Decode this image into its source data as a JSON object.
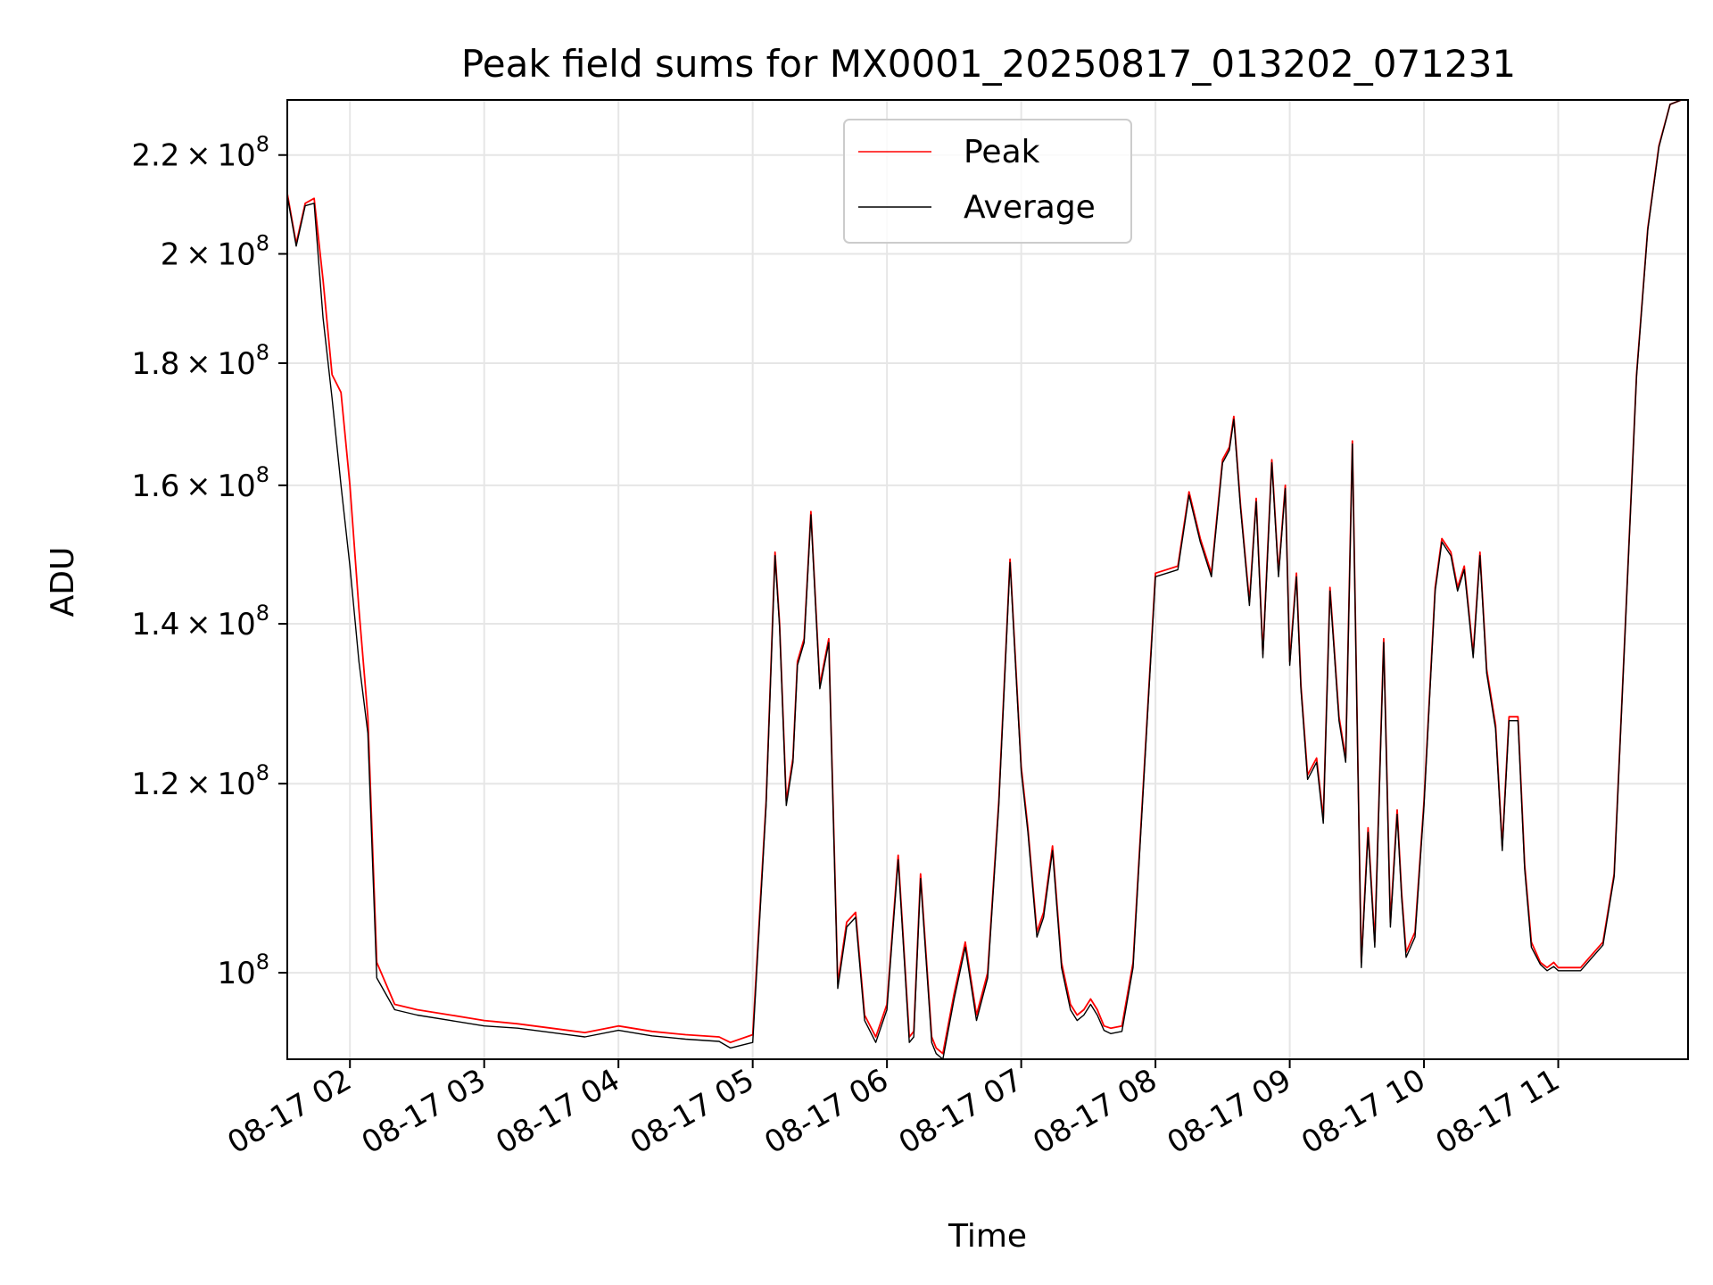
{
  "chart_data": {
    "type": "line",
    "title": "Peak field sums for MX0001_20250817_013202_071231",
    "xlabel": "Time",
    "ylabel": "ADU",
    "yscale": "log",
    "ylim": [
      92000000,
      232000000
    ],
    "xlim": [
      "08-17 01:32",
      "08-17 11:58"
    ],
    "grid": true,
    "legend_position": "upper-center",
    "x_ticks": [
      "08-17 02",
      "08-17 03",
      "08-17 04",
      "08-17 05",
      "08-17 06",
      "08-17 07",
      "08-17 08",
      "08-17 09",
      "08-17 10",
      "08-17 11"
    ],
    "y_ticks": [
      {
        "value": 100000000,
        "mant": "",
        "exp": "8",
        "label": "10^8"
      },
      {
        "value": 120000000,
        "mant": "1.2",
        "exp": "8",
        "label": "1.2 × 10^8"
      },
      {
        "value": 140000000,
        "mant": "1.4",
        "exp": "8",
        "label": "1.4 × 10^8"
      },
      {
        "value": 160000000,
        "mant": "1.6",
        "exp": "8",
        "label": "1.6 × 10^8"
      },
      {
        "value": 180000000,
        "mant": "1.8",
        "exp": "8",
        "label": "1.8 × 10^8"
      },
      {
        "value": 200000000,
        "mant": "2",
        "exp": "8",
        "label": "2 × 10^8"
      },
      {
        "value": 220000000,
        "mant": "2.2",
        "exp": "8",
        "label": "2.2 × 10^8"
      }
    ],
    "x": [
      "01:32",
      "01:36",
      "01:40",
      "01:44",
      "01:48",
      "01:52",
      "01:56",
      "02:00",
      "02:04",
      "02:08",
      "02:12",
      "02:20",
      "02:30",
      "02:45",
      "03:00",
      "03:15",
      "03:30",
      "03:45",
      "04:00",
      "04:15",
      "04:30",
      "04:45",
      "04:50",
      "05:00",
      "05:06",
      "05:10",
      "05:12",
      "05:15",
      "05:18",
      "05:20",
      "05:23",
      "05:26",
      "05:30",
      "05:34",
      "05:38",
      "05:42",
      "05:46",
      "05:50",
      "05:55",
      "06:00",
      "06:05",
      "06:10",
      "06:12",
      "06:15",
      "06:20",
      "06:22",
      "06:25",
      "06:30",
      "06:35",
      "06:40",
      "06:45",
      "06:50",
      "06:55",
      "07:00",
      "07:03",
      "07:07",
      "07:10",
      "07:14",
      "07:18",
      "07:22",
      "07:25",
      "07:28",
      "07:31",
      "07:34",
      "07:37",
      "07:40",
      "07:45",
      "07:50",
      "08:00",
      "08:10",
      "08:15",
      "08:20",
      "08:25",
      "08:30",
      "08:33",
      "08:35",
      "08:38",
      "08:42",
      "08:45",
      "08:48",
      "08:52",
      "08:55",
      "08:58",
      "09:00",
      "09:03",
      "09:05",
      "09:08",
      "09:12",
      "09:15",
      "09:18",
      "09:22",
      "09:25",
      "09:28",
      "09:32",
      "09:35",
      "09:38",
      "09:42",
      "09:45",
      "09:48",
      "09:50",
      "09:52",
      "09:56",
      "10:00",
      "10:05",
      "10:08",
      "10:12",
      "10:15",
      "10:18",
      "10:22",
      "10:25",
      "10:28",
      "10:32",
      "10:35",
      "10:38",
      "10:42",
      "10:45",
      "10:48",
      "10:52",
      "10:55",
      "10:58",
      "11:00",
      "11:10",
      "11:20",
      "11:25",
      "11:30",
      "11:35",
      "11:40",
      "11:45",
      "11:50",
      "11:55",
      "11:58"
    ],
    "series": [
      {
        "name": "Peak",
        "color": "#ff0000",
        "values": [
          212000000,
          202000000,
          210000000,
          211000000,
          195000000,
          178000000,
          175000000,
          160000000,
          142000000,
          128000000,
          101000000,
          97000000,
          96500000,
          96000000,
          95500000,
          95200000,
          94800000,
          94400000,
          95000000,
          94500000,
          94200000,
          94000000,
          93500000,
          94200000,
          118000000,
          150000000,
          140000000,
          118000000,
          123000000,
          135000000,
          138000000,
          156000000,
          132000000,
          138000000,
          99000000,
          105000000,
          106000000,
          96000000,
          94000000,
          97000000,
          112000000,
          94000000,
          94500000,
          110000000,
          94000000,
          93000000,
          92500000,
          98000000,
          103000000,
          96000000,
          100000000,
          118000000,
          149000000,
          122000000,
          115000000,
          104000000,
          106000000,
          113000000,
          101000000,
          97000000,
          96000000,
          96500000,
          97500000,
          96500000,
          95000000,
          94800000,
          95000000,
          101000000,
          147000000,
          148000000,
          159000000,
          152000000,
          147000000,
          164000000,
          166000000,
          171000000,
          157000000,
          143000000,
          158000000,
          136000000,
          164000000,
          147000000,
          160000000,
          135000000,
          147000000,
          132000000,
          121000000,
          123000000,
          116000000,
          145000000,
          128000000,
          123000000,
          167000000,
          101000000,
          115000000,
          103000000,
          138000000,
          105000000,
          117000000,
          108000000,
          102000000,
          104000000,
          118000000,
          145000000,
          152000000,
          150000000,
          145000000,
          148000000,
          136000000,
          150000000,
          134000000,
          127000000,
          113000000,
          128000000,
          128000000,
          111000000,
          103000000,
          101000000,
          100500000,
          101000000,
          100500000,
          100500000,
          103000000,
          110000000,
          140000000,
          178000000,
          205000000,
          222000000,
          231000000,
          232000000,
          232000000
        ]
      },
      {
        "name": "Average",
        "color": "#000000",
        "values": [
          211500000,
          201500000,
          209500000,
          210000000,
          188000000,
          174000000,
          160000000,
          148000000,
          135000000,
          126000000,
          99500000,
          96500000,
          96000000,
          95500000,
          95000000,
          94800000,
          94400000,
          94000000,
          94600000,
          94100000,
          93800000,
          93600000,
          93000000,
          93500000,
          117500000,
          149500000,
          139500000,
          117500000,
          122500000,
          134500000,
          137500000,
          155500000,
          131500000,
          137500000,
          98500000,
          104500000,
          105500000,
          95500000,
          93500000,
          96500000,
          111500000,
          93500000,
          94000000,
          109500000,
          93500000,
          92500000,
          92000000,
          97500000,
          102500000,
          95500000,
          99500000,
          117500000,
          148500000,
          121500000,
          114500000,
          103500000,
          105500000,
          112500000,
          100500000,
          96500000,
          95500000,
          96000000,
          97000000,
          96000000,
          94600000,
          94300000,
          94500000,
          100500000,
          146500000,
          147500000,
          158500000,
          151500000,
          146500000,
          163500000,
          165500000,
          170500000,
          156500000,
          142500000,
          157500000,
          135500000,
          163500000,
          146500000,
          159500000,
          134500000,
          146500000,
          131500000,
          120500000,
          122500000,
          115500000,
          144500000,
          127500000,
          122500000,
          166500000,
          100500000,
          114500000,
          102500000,
          137500000,
          104500000,
          116500000,
          107500000,
          101500000,
          103500000,
          117500000,
          144500000,
          151500000,
          149500000,
          144500000,
          147500000,
          135500000,
          149500000,
          133500000,
          126500000,
          112500000,
          127500000,
          127500000,
          110500000,
          102500000,
          100800000,
          100200000,
          100600000,
          100200000,
          100200000,
          102700000,
          109700000,
          139700000,
          177700000,
          204700000,
          221700000,
          231000000,
          232000000,
          232000000
        ]
      }
    ]
  }
}
